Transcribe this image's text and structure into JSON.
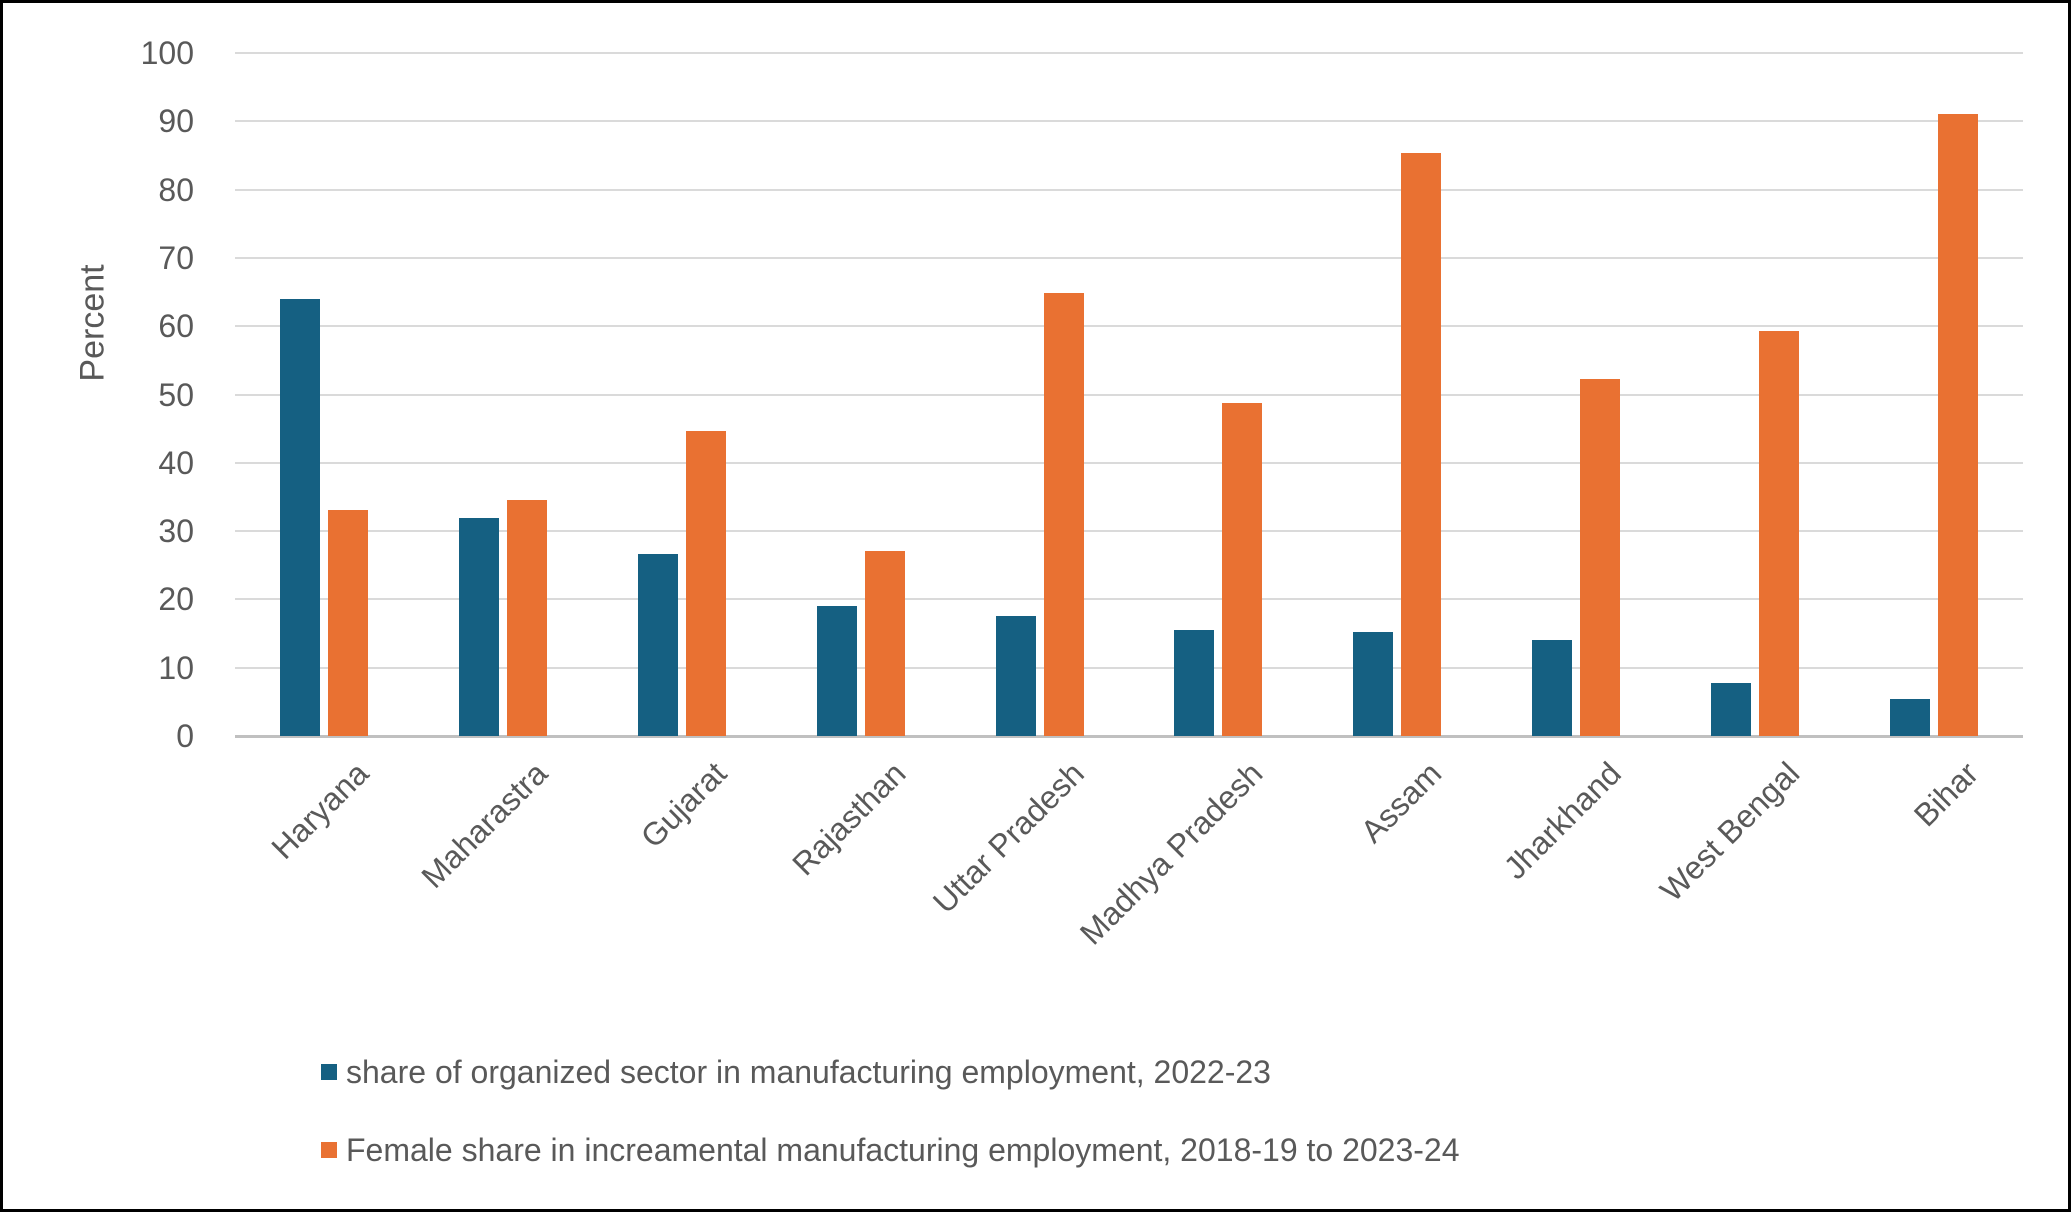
{
  "chart_data": {
    "type": "bar",
    "categories": [
      "Haryana",
      "Maharastra",
      "Gujarat",
      "Rajasthan",
      "Uttar Pradesh",
      "Madhya Pradesh",
      "Assam",
      "Jharkhand",
      "West Bengal",
      "Bihar"
    ],
    "series": [
      {
        "name": "share of organized sector in manufacturing employment, 2022-23",
        "color": "#156082",
        "values": [
          64,
          31.9,
          26.6,
          19,
          17.6,
          15.5,
          15.3,
          14,
          7.8,
          5.4
        ]
      },
      {
        "name": "Female share in increamental manufacturing employment, 2018-19 to 2023-24",
        "color": "#E97132",
        "values": [
          33.1,
          34.5,
          44.6,
          27.1,
          64.8,
          48.7,
          85.4,
          52.2,
          59.3,
          91.1
        ]
      }
    ],
    "title": "",
    "xlabel": "",
    "ylabel": "Percent",
    "ylim": [
      0,
      100
    ],
    "ytick_step": 10,
    "grid": true,
    "legend_position": "bottom-left",
    "text_color": "#595959"
  }
}
